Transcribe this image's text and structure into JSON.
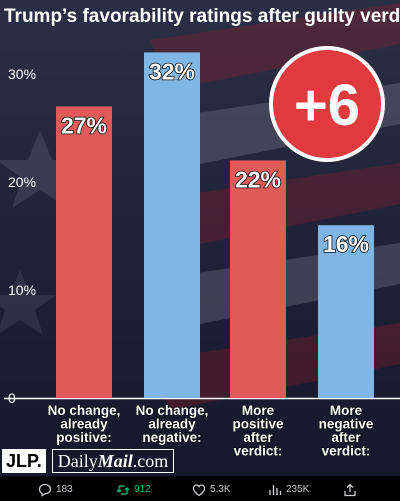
{
  "chart_data": {
    "type": "bar",
    "title": "Trump’s favorability ratings after guilty verdict",
    "categories": [
      [
        "No change,",
        "already",
        "positive:"
      ],
      [
        "No change,",
        "already",
        "negative:"
      ],
      [
        "More",
        "positive",
        "after",
        "verdict:"
      ],
      [
        "More",
        "negative",
        "after",
        "verdict:"
      ]
    ],
    "values": [
      27,
      32,
      22,
      16
    ],
    "value_labels": [
      "27%",
      "32%",
      "22%",
      "16%"
    ],
    "bar_colors": [
      "#e05a5a",
      "#7fb6e6",
      "#e05a5a",
      "#7fb6e6"
    ],
    "yticks": [
      0,
      10,
      20,
      30
    ],
    "ytick_labels": [
      "0",
      "10%",
      "20%",
      "30%"
    ],
    "ylim": [
      0,
      33
    ],
    "grid": false,
    "badge": "+6",
    "badge_color": "#e0393e"
  },
  "logos": {
    "jlp": "JLP.",
    "dm_daily": "Daily",
    "dm_mail": "Mail",
    "dm_com": ".com"
  },
  "stats": {
    "replies": "183",
    "reposts": "912",
    "likes": "5.3K",
    "views": "235K"
  }
}
